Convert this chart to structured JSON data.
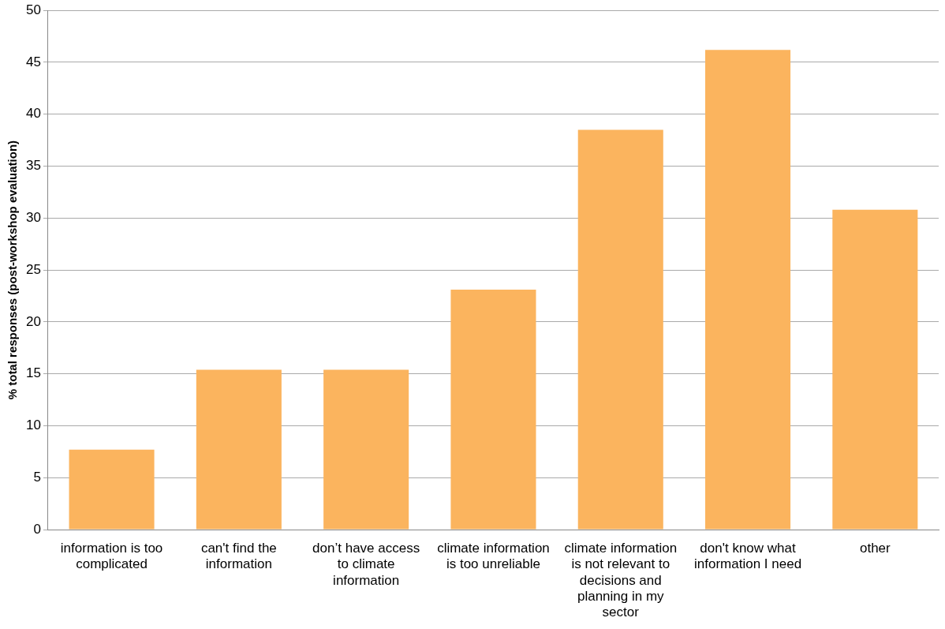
{
  "chart_data": {
    "type": "bar",
    "ylabel": "% total responses (post-workshop evaluation)",
    "categories": [
      "information is too complicated",
      "can't find the information",
      "don’t have access to climate information",
      "climate information is too unreliable",
      "climate information is not relevant to decisions and planning in my sector",
      "don't know what information I need",
      "other"
    ],
    "values": [
      7.7,
      15.4,
      15.4,
      23.1,
      38.5,
      46.2,
      30.8
    ],
    "color": "#fbb45e",
    "ylim": [
      0,
      50
    ],
    "yticks": [
      0,
      5,
      10,
      15,
      20,
      25,
      30,
      35,
      40,
      45,
      50
    ],
    "grid": "y",
    "legend": false
  }
}
